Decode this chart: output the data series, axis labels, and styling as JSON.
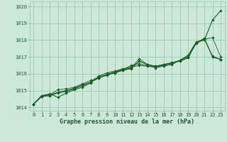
{
  "xlabel": "Graphe pression niveau de la mer (hPa)",
  "bg_color": "#cce8d8",
  "grid_color": "#99c4aa",
  "line_color": "#1a5c2a",
  "xlim": [
    -0.5,
    23.5
  ],
  "ylim": [
    1013.8,
    1020.3
  ],
  "yticks": [
    1014,
    1015,
    1016,
    1017,
    1018,
    1019,
    1020
  ],
  "xticks": [
    0,
    1,
    2,
    3,
    4,
    5,
    6,
    7,
    8,
    9,
    10,
    11,
    12,
    13,
    14,
    15,
    16,
    17,
    18,
    19,
    20,
    21,
    22,
    23
  ],
  "series": [
    [
      1014.2,
      1014.7,
      1014.8,
      1014.6,
      1014.85,
      1015.05,
      1015.2,
      1015.45,
      1015.85,
      1016.05,
      1016.15,
      1016.3,
      1016.4,
      1016.5,
      1016.45,
      1016.4,
      1016.5,
      1016.6,
      1016.8,
      1017.1,
      1017.9,
      1018.0,
      1019.2,
      1019.75
    ],
    [
      1014.2,
      1014.7,
      1014.75,
      1015.05,
      1015.1,
      1015.2,
      1015.4,
      1015.6,
      1015.8,
      1015.95,
      1016.1,
      1016.25,
      1016.5,
      1016.6,
      1016.5,
      1016.35,
      1016.45,
      1016.55,
      1016.8,
      1017.0,
      1017.8,
      1018.05,
      1018.15,
      1017.0
    ],
    [
      1014.2,
      1014.65,
      1014.7,
      1014.85,
      1014.95,
      1015.1,
      1015.3,
      1015.5,
      1015.75,
      1015.95,
      1016.1,
      1016.2,
      1016.35,
      1016.9,
      1016.55,
      1016.4,
      1016.55,
      1016.65,
      1016.75,
      1016.95,
      1017.85,
      1018.05,
      1017.05,
      1016.85
    ],
    [
      1014.2,
      1014.65,
      1014.7,
      1014.9,
      1015.0,
      1015.1,
      1015.3,
      1015.5,
      1015.75,
      1015.9,
      1016.05,
      1016.2,
      1016.3,
      1016.75,
      1016.55,
      1016.45,
      1016.55,
      1016.65,
      1016.75,
      1016.95,
      1017.85,
      1018.1,
      1017.0,
      1016.85
    ],
    [
      1014.2,
      1014.65,
      1014.75,
      1014.9,
      1015.0,
      1015.15,
      1015.35,
      1015.5,
      1015.75,
      1015.95,
      1016.05,
      1016.25,
      1016.35,
      1016.75,
      1016.55,
      1016.45,
      1016.55,
      1016.65,
      1016.8,
      1017.0,
      1017.85,
      1018.1,
      1017.0,
      1016.85
    ]
  ],
  "xlabel_fontsize": 6.0,
  "tick_fontsize": 5.0
}
